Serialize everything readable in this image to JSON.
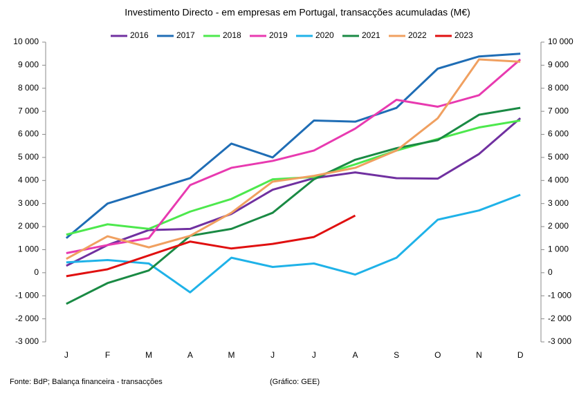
{
  "chart_data": {
    "type": "line",
    "title": "Investimento  Directo - em empresas em Portugal,  transacções acumuladas  (M€)",
    "categories": [
      "J",
      "F",
      "M",
      "A",
      "M",
      "J",
      "J",
      "A",
      "S",
      "O",
      "N",
      "D"
    ],
    "series": [
      {
        "name": "2016",
        "color": "#7030a0",
        "values": [
          300,
          1200,
          1850,
          1900,
          2550,
          3600,
          4100,
          4350,
          4100,
          4080,
          5150,
          6700
        ]
      },
      {
        "name": "2017",
        "color": "#1f6db5",
        "values": [
          1500,
          3000,
          3550,
          4100,
          5600,
          5000,
          6600,
          6550,
          7150,
          8850,
          9380,
          9500
        ]
      },
      {
        "name": "2018",
        "color": "#4de84d",
        "values": [
          1650,
          2100,
          1900,
          2650,
          3200,
          4050,
          4150,
          4700,
          5300,
          5800,
          6300,
          6600
        ]
      },
      {
        "name": "2019",
        "color": "#e83ab0",
        "values": [
          850,
          1200,
          1500,
          3800,
          4550,
          4850,
          5300,
          6250,
          7500,
          7200,
          7700,
          9250
        ]
      },
      {
        "name": "2020",
        "color": "#1fb2e8",
        "values": [
          450,
          550,
          400,
          -850,
          650,
          250,
          400,
          -80,
          650,
          2300,
          2700,
          3380
        ]
      },
      {
        "name": "2021",
        "color": "#1a8a44",
        "values": [
          -1350,
          -450,
          100,
          1600,
          1900,
          2600,
          4050,
          4900,
          5400,
          5750,
          6850,
          7150
        ]
      },
      {
        "name": "2022",
        "color": "#f0a060",
        "values": [
          600,
          1580,
          1100,
          1600,
          2600,
          3950,
          4200,
          4550,
          5300,
          6700,
          9250,
          9150
        ]
      },
      {
        "name": "2023",
        "color": "#e01010",
        "values": [
          -150,
          150,
          750,
          1350,
          1050,
          1250,
          1550,
          2480,
          null,
          null,
          null,
          null
        ]
      }
    ],
    "ylim": [
      -3000,
      10000
    ],
    "yticks": [
      {
        "value": -3000,
        "label": "-3 000"
      },
      {
        "value": -2000,
        "label": "-2 000"
      },
      {
        "value": -1000,
        "label": "-1 000"
      },
      0,
      {
        "value": 1000,
        "label": "1 000"
      },
      {
        "value": 2000,
        "label": "2 000"
      },
      {
        "value": 3000,
        "label": "3 000"
      },
      {
        "value": 4000,
        "label": "4 000"
      },
      {
        "value": 5000,
        "label": "5 000"
      },
      {
        "value": 6000,
        "label": "6 000"
      },
      {
        "value": 7000,
        "label": "7 000"
      },
      {
        "value": 8000,
        "label": "8 000"
      },
      {
        "value": 9000,
        "label": "9 000"
      },
      {
        "value": 10000,
        "label": "10 000"
      }
    ],
    "y2lim": [
      -3000,
      10000
    ],
    "y2ticks": [
      {
        "value": -3000,
        "label": "-3 000"
      },
      {
        "value": -2000,
        "label": "-2 000"
      },
      {
        "value": -1000,
        "label": "-1 000"
      },
      0,
      {
        "value": 1000,
        "label": "1 000"
      },
      {
        "value": 2000,
        "label": "2 000"
      },
      {
        "value": 3000,
        "label": "3 000"
      },
      {
        "value": 4000,
        "label": "4 000"
      },
      {
        "value": 5000,
        "label": "5 000"
      },
      {
        "value": 6000,
        "label": "6 000"
      },
      {
        "value": 7000,
        "label": "7 000"
      },
      {
        "value": 8000,
        "label": "8 000"
      },
      {
        "value": 9000,
        "label": "9 000"
      },
      {
        "value": 10000,
        "label": "10 000"
      }
    ],
    "grid": false,
    "legend": "top",
    "source": "Fonte: BdP; Balança financeira - transacções",
    "credit": "(Gráfico: GEE)"
  }
}
